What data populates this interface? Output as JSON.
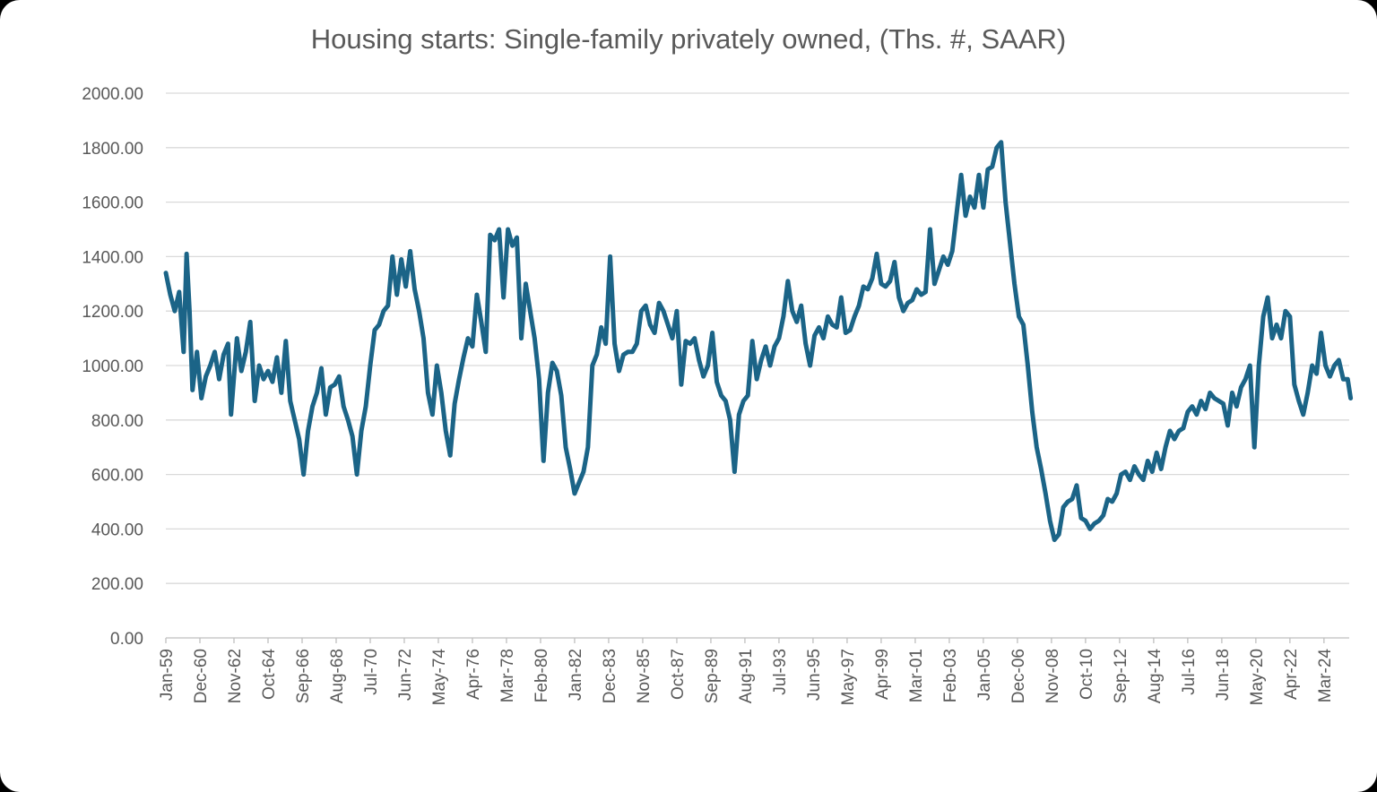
{
  "chart_data": {
    "type": "line",
    "title": "Housing starts: Single-family privately owned, (Ths. #, SAAR)",
    "xlabel": "",
    "ylabel": "",
    "ylim": [
      0,
      2000
    ],
    "yticks": [
      "0.00",
      "200.00",
      "400.00",
      "600.00",
      "800.00",
      "1000.00",
      "1200.00",
      "1400.00",
      "1600.00",
      "1800.00",
      "2000.00"
    ],
    "xticks": [
      "Jan-59",
      "Dec-60",
      "Nov-62",
      "Oct-64",
      "Sep-66",
      "Aug-68",
      "Jul-70",
      "Jun-72",
      "May-74",
      "Apr-76",
      "Mar-78",
      "Feb-80",
      "Jan-82",
      "Dec-83",
      "Nov-85",
      "Oct-87",
      "Sep-89",
      "Aug-91",
      "Jul-93",
      "Jun-95",
      "May-97",
      "Apr-99",
      "Mar-01",
      "Feb-03",
      "Jan-05",
      "Dec-06",
      "Nov-08",
      "Oct-10",
      "Sep-12",
      "Aug-14",
      "Jul-16",
      "Jun-18",
      "May-20",
      "Apr-22",
      "Mar-24"
    ],
    "grid": true,
    "legend": "none",
    "line_color": "#1b6487",
    "series": [
      {
        "x": [
          "1959-01",
          "1959-04",
          "1959-07",
          "1959-10",
          "1960-01",
          "1960-03",
          "1960-05",
          "1960-07",
          "1960-10",
          "1961-01",
          "1961-04",
          "1961-07",
          "1961-10",
          "1962-01",
          "1962-04",
          "1962-07",
          "1962-09",
          "1963-01",
          "1963-04",
          "1963-07",
          "1963-10",
          "1964-01",
          "1964-04",
          "1964-07",
          "1964-10",
          "1965-01",
          "1965-04",
          "1965-07",
          "1965-10",
          "1966-01",
          "1966-04",
          "1966-07",
          "1966-10",
          "1967-01",
          "1967-04",
          "1967-07",
          "1967-10",
          "1968-01",
          "1968-04",
          "1968-07",
          "1968-10",
          "1969-01",
          "1969-04",
          "1969-07",
          "1969-10",
          "1970-01",
          "1970-04",
          "1970-07",
          "1970-10",
          "1971-01",
          "1971-04",
          "1971-07",
          "1971-10",
          "1972-01",
          "1972-04",
          "1972-07",
          "1972-10",
          "1973-01",
          "1973-04",
          "1973-07",
          "1973-10",
          "1974-01",
          "1974-04",
          "1974-07",
          "1974-10",
          "1975-01",
          "1975-04",
          "1975-07",
          "1975-10",
          "1976-01",
          "1976-04",
          "1976-07",
          "1976-10",
          "1977-01",
          "1977-04",
          "1977-07",
          "1977-10",
          "1978-01",
          "1978-04",
          "1978-07",
          "1978-10",
          "1979-01",
          "1979-04",
          "1979-07",
          "1979-10",
          "1980-01",
          "1980-04",
          "1980-07",
          "1980-10",
          "1981-01",
          "1981-04",
          "1981-07",
          "1981-10",
          "1982-01",
          "1982-04",
          "1982-07",
          "1982-10",
          "1983-01",
          "1983-04",
          "1983-07",
          "1983-10",
          "1984-01",
          "1984-04",
          "1984-07",
          "1984-10",
          "1985-01",
          "1985-04",
          "1985-07",
          "1985-10",
          "1986-01",
          "1986-04",
          "1986-07",
          "1986-10",
          "1987-01",
          "1987-04",
          "1987-07",
          "1987-10",
          "1988-01",
          "1988-04",
          "1988-07",
          "1988-10",
          "1989-01",
          "1989-04",
          "1989-07",
          "1989-10",
          "1990-01",
          "1990-04",
          "1990-07",
          "1990-10",
          "1991-01",
          "1991-04",
          "1991-07",
          "1991-10",
          "1992-01",
          "1992-04",
          "1992-07",
          "1992-10",
          "1993-01",
          "1993-04",
          "1993-07",
          "1993-10",
          "1994-01",
          "1994-04",
          "1994-07",
          "1994-10",
          "1995-01",
          "1995-04",
          "1995-07",
          "1995-10",
          "1996-01",
          "1996-04",
          "1996-07",
          "1996-10",
          "1997-01",
          "1997-04",
          "1997-07",
          "1997-10",
          "1998-01",
          "1998-04",
          "1998-07",
          "1998-10",
          "1999-01",
          "1999-04",
          "1999-07",
          "1999-10",
          "2000-01",
          "2000-04",
          "2000-07",
          "2000-10",
          "2001-01",
          "2001-04",
          "2001-07",
          "2001-10",
          "2002-01",
          "2002-04",
          "2002-07",
          "2002-10",
          "2003-01",
          "2003-04",
          "2003-07",
          "2003-10",
          "2004-01",
          "2004-04",
          "2004-07",
          "2004-10",
          "2005-01",
          "2005-04",
          "2005-07",
          "2005-10",
          "2006-01",
          "2006-04",
          "2006-07",
          "2006-10",
          "2007-01",
          "2007-04",
          "2007-07",
          "2007-10",
          "2008-01",
          "2008-04",
          "2008-07",
          "2008-10",
          "2009-01",
          "2009-04",
          "2009-07",
          "2009-10",
          "2010-01",
          "2010-04",
          "2010-07",
          "2010-10",
          "2011-01",
          "2011-04",
          "2011-07",
          "2011-10",
          "2012-01",
          "2012-04",
          "2012-07",
          "2012-10",
          "2013-01",
          "2013-04",
          "2013-07",
          "2013-10",
          "2014-01",
          "2014-04",
          "2014-07",
          "2014-10",
          "2015-01",
          "2015-04",
          "2015-07",
          "2015-10",
          "2016-01",
          "2016-04",
          "2016-07",
          "2016-10",
          "2017-01",
          "2017-04",
          "2017-07",
          "2017-10",
          "2018-01",
          "2018-04",
          "2018-07",
          "2018-10",
          "2019-01",
          "2019-04",
          "2019-07",
          "2019-10",
          "2020-01",
          "2020-04",
          "2020-07",
          "2020-10",
          "2021-01",
          "2021-04",
          "2021-07",
          "2021-10",
          "2022-01",
          "2022-04",
          "2022-07",
          "2022-10",
          "2023-01",
          "2023-04",
          "2023-07",
          "2023-10",
          "2024-01",
          "2024-04",
          "2024-07",
          "2024-10",
          "2025-01",
          "2025-04",
          "2025-07",
          "2025-09"
        ],
        "values": [
          1340,
          1260,
          1200,
          1270,
          1050,
          1410,
          1200,
          910,
          1050,
          880,
          960,
          1000,
          1050,
          950,
          1040,
          1080,
          820,
          1100,
          980,
          1050,
          1160,
          870,
          1000,
          950,
          980,
          940,
          1030,
          900,
          1090,
          870,
          800,
          730,
          600,
          760,
          850,
          900,
          990,
          820,
          920,
          930,
          960,
          850,
          800,
          740,
          600,
          760,
          850,
          1000,
          1130,
          1150,
          1200,
          1220,
          1400,
          1260,
          1390,
          1290,
          1420,
          1280,
          1200,
          1100,
          900,
          820,
          1000,
          900,
          760,
          670,
          860,
          950,
          1030,
          1100,
          1070,
          1260,
          1160,
          1050,
          1480,
          1460,
          1500,
          1250,
          1500,
          1440,
          1470,
          1100,
          1300,
          1200,
          1100,
          950,
          650,
          900,
          1010,
          980,
          890,
          700,
          620,
          530,
          570,
          610,
          700,
          1000,
          1040,
          1140,
          1080,
          1400,
          1080,
          980,
          1040,
          1050,
          1050,
          1080,
          1200,
          1220,
          1150,
          1120,
          1230,
          1200,
          1150,
          1100,
          1200,
          930,
          1090,
          1080,
          1100,
          1020,
          960,
          1000,
          1120,
          940,
          890,
          870,
          800,
          610,
          820,
          870,
          890,
          1090,
          950,
          1020,
          1070,
          1000,
          1070,
          1100,
          1180,
          1310,
          1200,
          1160,
          1220,
          1080,
          1000,
          1110,
          1140,
          1100,
          1180,
          1150,
          1140,
          1250,
          1120,
          1130,
          1180,
          1220,
          1290,
          1280,
          1320,
          1410,
          1300,
          1290,
          1310,
          1380,
          1250,
          1200,
          1230,
          1240,
          1280,
          1260,
          1270,
          1500,
          1300,
          1350,
          1400,
          1370,
          1420,
          1560,
          1700,
          1550,
          1620,
          1580,
          1700,
          1580,
          1720,
          1730,
          1800,
          1820,
          1600,
          1450,
          1300,
          1180,
          1150,
          1000,
          830,
          700,
          620,
          530,
          430,
          360,
          380,
          480,
          500,
          510,
          560,
          440,
          430,
          400,
          420,
          430,
          450,
          510,
          500,
          530,
          600,
          610,
          580,
          630,
          600,
          580,
          650,
          610,
          680,
          620,
          700,
          760,
          730,
          760,
          770,
          830,
          850,
          820,
          870,
          840,
          900,
          880,
          870,
          860,
          780,
          900,
          850,
          920,
          950,
          1000,
          700,
          1000,
          1180,
          1250,
          1100,
          1150,
          1100,
          1200,
          1180,
          930,
          870,
          820,
          900,
          1000,
          970,
          1120,
          1000,
          960,
          1000,
          1020,
          950,
          950,
          880
        ]
      }
    ]
  }
}
